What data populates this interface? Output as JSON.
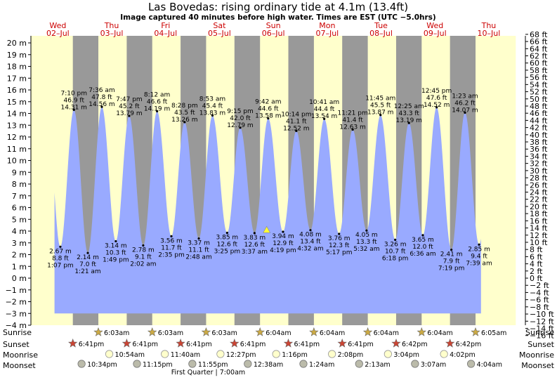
{
  "header": {
    "title": "Las Bovedas: rising  ordinary tide at 4.1m (13.4ft)",
    "subtitle": "Image captured 40 minutes before high water. Times are EST (UTC −5.0hrs)"
  },
  "colors": {
    "day_bg": "#ffffcc",
    "night_bg": "#999999",
    "water": "#99aaff",
    "red": "#cc0000"
  },
  "chart_data": {
    "type": "area",
    "ylim_m": [
      -4,
      20.6
    ],
    "ylim_ft": [
      -16,
      68
    ],
    "y_ticks_m": [
      "20 m",
      "19 m",
      "18 m",
      "17 m",
      "16 m",
      "15 m",
      "14 m",
      "13 m",
      "12 m",
      "11 m",
      "10 m",
      "9 m",
      "8 m",
      "7 m",
      "6 m",
      "5 m",
      "4 m",
      "3 m",
      "2 m",
      "1 m",
      "0 m",
      "−1 m",
      "−2 m",
      "−3 m",
      "−4 m"
    ],
    "y_ticks_ft": [
      "68 ft",
      "66 ft",
      "64 ft",
      "62 ft",
      "60 ft",
      "58 ft",
      "56 ft",
      "54 ft",
      "52 ft",
      "50 ft",
      "48 ft",
      "46 ft",
      "44 ft",
      "42 ft",
      "40 ft",
      "38 ft",
      "36 ft",
      "34 ft",
      "32 ft",
      "30 ft",
      "28 ft",
      "26 ft",
      "24 ft",
      "22 ft",
      "20 ft",
      "18 ft",
      "16 ft",
      "14 ft",
      "12 ft",
      "10 ft",
      "8 ft",
      "6 ft",
      "4 ft",
      "2 ft",
      "0 ft",
      "−2 ft",
      "−4 ft",
      "−6 ft",
      "−8 ft",
      "−10 ft",
      "−12 ft",
      "−14 ft",
      "−16 ft"
    ],
    "days": [
      {
        "dow": "Wed",
        "date": "02–Jul"
      },
      {
        "dow": "Thu",
        "date": "03–Jul"
      },
      {
        "dow": "Fri",
        "date": "04–Jul"
      },
      {
        "dow": "Sat",
        "date": "05–Jul"
      },
      {
        "dow": "Sun",
        "date": "06–Jul"
      },
      {
        "dow": "Mon",
        "date": "07–Jul"
      },
      {
        "dow": "Tue",
        "date": "08–Jul"
      },
      {
        "dow": "Wed",
        "date": "09–Jul"
      },
      {
        "dow": "Thu",
        "date": "10–Jul"
      }
    ],
    "high_tides": [
      {
        "day": 0,
        "time": "7:10 pm",
        "ft": "46.9 ft",
        "m": "14.31 m",
        "h": 19.17,
        "v": 14.31
      },
      {
        "day": 1,
        "time": "7:36 am",
        "ft": "47.8 ft",
        "m": "14.56 m",
        "h": 7.6,
        "v": 14.56
      },
      {
        "day": 1,
        "time": "7:47 pm",
        "ft": "45.2 ft",
        "m": "13.79 m",
        "h": 19.78,
        "v": 13.79
      },
      {
        "day": 2,
        "time": "8:12 am",
        "ft": "46.6 ft",
        "m": "14.19 m",
        "h": 8.2,
        "v": 14.19
      },
      {
        "day": 2,
        "time": "8:28 pm",
        "ft": "43.5 ft",
        "m": "13.26 m",
        "h": 20.47,
        "v": 13.26
      },
      {
        "day": 3,
        "time": "8:53 am",
        "ft": "45.4 ft",
        "m": "13.83 m",
        "h": 8.88,
        "v": 13.83
      },
      {
        "day": 3,
        "time": "9:15 pm",
        "ft": "42.0 ft",
        "m": "12.79 m",
        "h": 21.25,
        "v": 12.79
      },
      {
        "day": 4,
        "time": "9:42 am",
        "ft": "44.6 ft",
        "m": "13.58 m",
        "h": 9.7,
        "v": 13.58
      },
      {
        "day": 4,
        "time": "10:14 pm",
        "ft": "41.1 ft",
        "m": "12.52 m",
        "h": 22.23,
        "v": 12.52
      },
      {
        "day": 5,
        "time": "10:41 am",
        "ft": "44.4 ft",
        "m": "13.54 m",
        "h": 10.68,
        "v": 13.54
      },
      {
        "day": 5,
        "time": "11:21 pm",
        "ft": "41.4 ft",
        "m": "12.63 m",
        "h": 23.35,
        "v": 12.63
      },
      {
        "day": 6,
        "time": "11:45 am",
        "ft": "45.5 ft",
        "m": "13.87 m",
        "h": 11.75,
        "v": 13.87
      },
      {
        "day": 7,
        "time": "12:25 am",
        "ft": "43.3 ft",
        "m": "13.19 m",
        "h": 0.42,
        "v": 13.19
      },
      {
        "day": 7,
        "time": "12:45 pm",
        "ft": "47.6 ft",
        "m": "14.52 m",
        "h": 12.75,
        "v": 14.52
      },
      {
        "day": 8,
        "time": "1:23 am",
        "ft": "46.2 ft",
        "m": "14.07 m",
        "h": 1.38,
        "v": 14.07
      }
    ],
    "low_tides": [
      {
        "day": 0,
        "time": "1:07 pm",
        "ft": "8.8 ft",
        "m": "2.67 m",
        "h": 13.12,
        "v": 2.67
      },
      {
        "day": 1,
        "time": "1:21 am",
        "ft": "7.0 ft",
        "m": "2.14 m",
        "h": 1.35,
        "v": 2.14
      },
      {
        "day": 1,
        "time": "1:49 pm",
        "ft": "10.3 ft",
        "m": "3.14 m",
        "h": 13.82,
        "v": 3.14
      },
      {
        "day": 2,
        "time": "2:02 am",
        "ft": "9.1 ft",
        "m": "2.78 m",
        "h": 2.03,
        "v": 2.78
      },
      {
        "day": 2,
        "time": "2:35 pm",
        "ft": "11.7 ft",
        "m": "3.56 m",
        "h": 14.58,
        "v": 3.56
      },
      {
        "day": 3,
        "time": "2:48 am",
        "ft": "11.1 ft",
        "m": "3.37 m",
        "h": 2.8,
        "v": 3.37
      },
      {
        "day": 3,
        "time": "3:25 pm",
        "ft": "12.6 ft",
        "m": "3.85 m",
        "h": 15.42,
        "v": 3.85
      },
      {
        "day": 4,
        "time": "3:37 am",
        "ft": "12.6 ft",
        "m": "3.83 m",
        "h": 3.62,
        "v": 3.83
      },
      {
        "day": 4,
        "time": "4:19 pm",
        "ft": "12.9 ft",
        "m": "3.94 m",
        "h": 16.32,
        "v": 3.94
      },
      {
        "day": 5,
        "time": "4:32 am",
        "ft": "13.4 ft",
        "m": "4.08 m",
        "h": 4.53,
        "v": 4.08
      },
      {
        "day": 5,
        "time": "5:17 pm",
        "ft": "12.3 ft",
        "m": "3.76 m",
        "h": 17.28,
        "v": 3.76
      },
      {
        "day": 6,
        "time": "5:32 am",
        "ft": "13.3 ft",
        "m": "4.05 m",
        "h": 5.53,
        "v": 4.05
      },
      {
        "day": 6,
        "time": "6:18 pm",
        "ft": "10.7 ft",
        "m": "3.26 m",
        "h": 18.3,
        "v": 3.26
      },
      {
        "day": 7,
        "time": "6:36 am",
        "ft": "12.0 ft",
        "m": "3.65 m",
        "h": 6.6,
        "v": 3.65
      },
      {
        "day": 7,
        "time": "7:19 pm",
        "ft": "7.9 ft",
        "m": "2.41 m",
        "h": 19.32,
        "v": 2.41
      },
      {
        "day": 8,
        "time": "7:39 am",
        "ft": "9.4 ft",
        "m": "2.85 m",
        "h": 7.65,
        "v": 2.85
      }
    ],
    "sunrise": [
      {
        "day": 1,
        "time": "6:03am",
        "h": 6.05
      },
      {
        "day": 2,
        "time": "6:03am",
        "h": 6.05
      },
      {
        "day": 3,
        "time": "6:03am",
        "h": 6.05
      },
      {
        "day": 4,
        "time": "6:04am",
        "h": 6.07
      },
      {
        "day": 5,
        "time": "6:04am",
        "h": 6.07
      },
      {
        "day": 6,
        "time": "6:04am",
        "h": 6.07
      },
      {
        "day": 7,
        "time": "6:04am",
        "h": 6.07
      },
      {
        "day": 8,
        "time": "6:05am",
        "h": 6.08
      }
    ],
    "sunset": [
      {
        "day": 0,
        "time": "6:41pm",
        "h": 18.68
      },
      {
        "day": 1,
        "time": "6:41pm",
        "h": 18.68
      },
      {
        "day": 2,
        "time": "6:41pm",
        "h": 18.68
      },
      {
        "day": 3,
        "time": "6:41pm",
        "h": 18.68
      },
      {
        "day": 4,
        "time": "6:41pm",
        "h": 18.68
      },
      {
        "day": 5,
        "time": "6:41pm",
        "h": 18.68
      },
      {
        "day": 6,
        "time": "6:42pm",
        "h": 18.7
      },
      {
        "day": 7,
        "time": "6:42pm",
        "h": 18.7
      }
    ],
    "moonrise": [
      {
        "day": 1,
        "time": "10:54am",
        "h": 10.9
      },
      {
        "day": 2,
        "time": "11:40am",
        "h": 11.67
      },
      {
        "day": 3,
        "time": "12:27pm",
        "h": 12.45
      },
      {
        "day": 4,
        "time": "1:16pm",
        "h": 13.27
      },
      {
        "day": 5,
        "time": "2:08pm",
        "h": 14.13
      },
      {
        "day": 6,
        "time": "3:04pm",
        "h": 15.07
      },
      {
        "day": 7,
        "time": "4:02pm",
        "h": 16.03
      }
    ],
    "moonset": [
      {
        "day": 0,
        "time": "10:34pm",
        "h": 22.57
      },
      {
        "day": 1,
        "time": "11:15pm",
        "h": 23.25
      },
      {
        "day": 2,
        "time": "11:55pm",
        "h": 23.92
      },
      {
        "day": 4,
        "time": "12:38am",
        "h": 0.63
      },
      {
        "day": 5,
        "time": "1:24am",
        "h": 1.4
      },
      {
        "day": 6,
        "time": "2:13am",
        "h": 2.22
      },
      {
        "day": 7,
        "time": "3:07am",
        "h": 3.12
      },
      {
        "day": 8,
        "time": "4:04am",
        "h": 4.07
      }
    ],
    "moon_phase": {
      "text": "First Quarter | 7:00am",
      "day": 3,
      "h": 7.0
    },
    "current_marker": {
      "day": 4,
      "h": 9.03,
      "v": 4.1
    },
    "data_span": {
      "start": {
        "day": 0,
        "h": 10.5
      },
      "end": {
        "day": 8,
        "h": 8.5
      }
    }
  },
  "legend_rows": {
    "sunrise": "Sunrise",
    "sunset": "Sunset",
    "moonrise": "Moonrise",
    "moonset": "Moonset"
  }
}
